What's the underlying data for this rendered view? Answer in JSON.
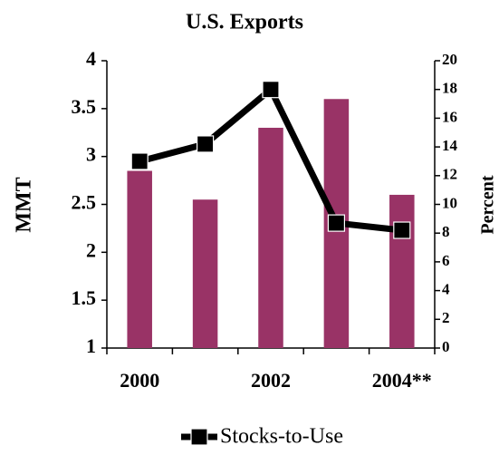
{
  "chart_data": {
    "type": "bar-line",
    "title": "U.S. Exports",
    "categories": [
      "2000",
      null,
      "2002",
      null,
      "2004**"
    ],
    "y_label": "MMT",
    "y2_label": "Percent",
    "ylim": [
      1,
      4
    ],
    "yticks": [
      1,
      1.5,
      2,
      2.5,
      3,
      3.5,
      4
    ],
    "y2lim": [
      0,
      20
    ],
    "y2ticks": [
      0,
      2,
      4,
      6,
      8,
      10,
      12,
      14,
      16,
      18,
      20
    ],
    "series": [
      {
        "type": "bar",
        "color": "#993366",
        "values": [
          2.85,
          2.55,
          3.3,
          3.6,
          2.6
        ]
      },
      {
        "type": "line",
        "name": "Stocks-to-Use",
        "color": "#000000",
        "axis": "y2",
        "values": [
          13,
          14.2,
          18,
          8.7,
          8.2
        ]
      }
    ]
  }
}
